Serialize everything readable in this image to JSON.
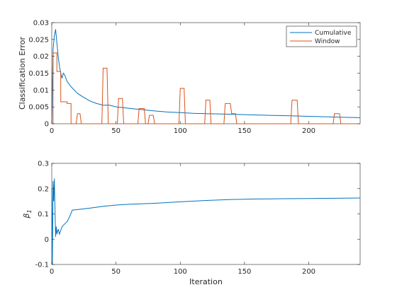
{
  "colors": {
    "cumulative": "#0072BD",
    "window": "#D95319",
    "axis": "#262626",
    "background": "#ffffff"
  },
  "chart_data": [
    {
      "type": "line",
      "title": "",
      "xlabel": "",
      "ylabel": "Classification Error",
      "xlim": [
        0,
        240
      ],
      "ylim": [
        0,
        0.03
      ],
      "xticks": [
        0,
        50,
        100,
        150,
        200
      ],
      "xtick_labels": [
        "0",
        "50",
        "100",
        "150",
        "200"
      ],
      "yticks": [
        0,
        0.005,
        0.01,
        0.015,
        0.02,
        0.025,
        0.03
      ],
      "ytick_labels": [
        "0",
        "0.005",
        "0.01",
        "0.015",
        "0.02",
        "0.025",
        "0.03"
      ],
      "grid": false,
      "legend": {
        "placement": "top-right",
        "entries": [
          "Cumulative",
          "Window"
        ]
      },
      "series": [
        {
          "name": "Cumulative",
          "color": "#0072BD",
          "x": [
            0,
            1,
            2,
            3,
            4,
            5,
            6,
            7,
            8,
            9,
            10,
            12,
            15,
            20,
            25,
            30,
            35,
            40,
            45,
            50,
            60,
            70,
            80,
            90,
            100,
            110,
            120,
            130,
            140,
            150,
            160,
            170,
            180,
            190,
            200,
            210,
            220,
            230,
            240
          ],
          "y": [
            0,
            0.022,
            0.026,
            0.028,
            0.024,
            0.02,
            0.017,
            0.015,
            0.0135,
            0.015,
            0.0145,
            0.0125,
            0.011,
            0.009,
            0.0078,
            0.0067,
            0.006,
            0.0055,
            0.0055,
            0.005,
            0.0046,
            0.0042,
            0.0038,
            0.0035,
            0.0033,
            0.0031,
            0.003,
            0.0029,
            0.0028,
            0.0027,
            0.0026,
            0.0025,
            0.0024,
            0.0023,
            0.0022,
            0.0021,
            0.002,
            0.0019,
            0.0018
          ]
        },
        {
          "name": "Window",
          "color": "#D95319",
          "x": [
            0,
            1,
            1,
            4,
            4,
            7,
            7,
            12,
            12,
            15,
            15,
            19,
            20,
            22,
            23,
            39,
            40,
            43,
            44,
            51,
            52,
            55,
            56,
            67,
            68,
            72,
            73,
            75,
            76,
            79,
            80,
            99,
            100,
            103,
            104,
            119,
            120,
            123,
            124,
            134,
            135,
            139,
            140,
            143,
            144,
            186,
            187,
            191,
            192,
            219,
            220,
            224,
            225,
            240
          ],
          "y": [
            0,
            0,
            0.021,
            0.021,
            0.0155,
            0.0155,
            0.0065,
            0.0065,
            0.006,
            0.006,
            0,
            0,
            0.003,
            0.003,
            0,
            0,
            0.0165,
            0.0165,
            0,
            0,
            0.0075,
            0.0075,
            0,
            0,
            0.0045,
            0.0045,
            0,
            0,
            0.0025,
            0.0025,
            0,
            0,
            0.0105,
            0.0105,
            0,
            0,
            0.007,
            0.007,
            0,
            0,
            0.006,
            0.006,
            0.003,
            0.003,
            0,
            0,
            0.007,
            0.007,
            0,
            0,
            0.003,
            0.003,
            0,
            0
          ]
        }
      ]
    },
    {
      "type": "line",
      "title": "",
      "xlabel": "Iteration",
      "ylabel": "β_1",
      "ylabel_main": "β",
      "ylabel_sub": "1",
      "xlim": [
        0,
        240
      ],
      "ylim": [
        -0.1,
        0.3
      ],
      "xticks": [
        0,
        50,
        100,
        150,
        200
      ],
      "xtick_labels": [
        "0",
        "50",
        "100",
        "150",
        "200"
      ],
      "yticks": [
        -0.1,
        0,
        0.1,
        0.2,
        0.3
      ],
      "ytick_labels": [
        "-0.1",
        "0",
        "0.1",
        "0.2",
        "0.3"
      ],
      "grid": false,
      "series": [
        {
          "name": "",
          "color": "#0072BD",
          "x": [
            0,
            0.5,
            1,
            1.5,
            2,
            2.5,
            3,
            3.5,
            4,
            5,
            6,
            8,
            10,
            12,
            14,
            16,
            20,
            30,
            40,
            50,
            60,
            80,
            100,
            120,
            140,
            160,
            180,
            200,
            220,
            240
          ],
          "y": [
            0.2,
            -0.1,
            0.23,
            0.15,
            0.24,
            0.12,
            0.01,
            0.05,
            0.02,
            0.04,
            0.02,
            0.05,
            0.06,
            0.07,
            0.09,
            0.115,
            0.117,
            0.123,
            0.13,
            0.135,
            0.138,
            0.142,
            0.148,
            0.153,
            0.157,
            0.159,
            0.16,
            0.161,
            0.162,
            0.163
          ]
        }
      ]
    }
  ]
}
